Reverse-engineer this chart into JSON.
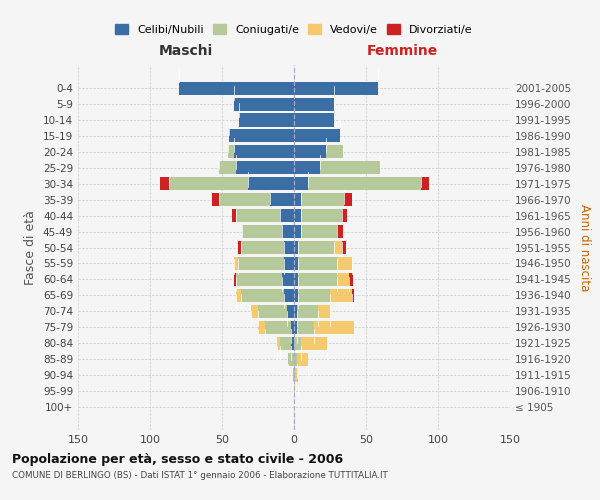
{
  "age_groups": [
    "100+",
    "95-99",
    "90-94",
    "85-89",
    "80-84",
    "75-79",
    "70-74",
    "65-69",
    "60-64",
    "55-59",
    "50-54",
    "45-49",
    "40-44",
    "35-39",
    "30-34",
    "25-29",
    "20-24",
    "15-19",
    "10-14",
    "5-9",
    "0-4"
  ],
  "birth_years": [
    "≤ 1905",
    "1906-1910",
    "1911-1915",
    "1916-1920",
    "1921-1925",
    "1926-1930",
    "1931-1935",
    "1936-1940",
    "1941-1945",
    "1946-1950",
    "1951-1955",
    "1956-1960",
    "1961-1965",
    "1966-1970",
    "1971-1975",
    "1976-1980",
    "1981-1985",
    "1986-1990",
    "1991-1995",
    "1996-2000",
    "2001-2005"
  ],
  "males_celibi": [
    0,
    0,
    0,
    0,
    2,
    2,
    5,
    7,
    8,
    7,
    7,
    8,
    10,
    17,
    32,
    40,
    42,
    45,
    38,
    42,
    80
  ],
  "males_coniugati": [
    0,
    0,
    1,
    4,
    8,
    18,
    20,
    30,
    32,
    32,
    30,
    28,
    30,
    35,
    55,
    12,
    4,
    0,
    0,
    0,
    0
  ],
  "males_vedovi": [
    0,
    0,
    0,
    0,
    2,
    5,
    5,
    3,
    0,
    3,
    0,
    0,
    0,
    0,
    0,
    0,
    0,
    0,
    0,
    0,
    0
  ],
  "males_divorziati": [
    0,
    0,
    0,
    0,
    0,
    0,
    0,
    0,
    2,
    0,
    2,
    0,
    3,
    5,
    6,
    0,
    0,
    0,
    0,
    0,
    0
  ],
  "females_nubili": [
    0,
    0,
    0,
    0,
    0,
    2,
    2,
    3,
    3,
    3,
    3,
    5,
    5,
    5,
    10,
    18,
    22,
    32,
    28,
    28,
    58
  ],
  "females_coniugate": [
    0,
    0,
    1,
    2,
    5,
    12,
    15,
    22,
    27,
    27,
    25,
    25,
    28,
    30,
    78,
    42,
    12,
    0,
    0,
    0,
    0
  ],
  "females_vedove": [
    0,
    1,
    2,
    8,
    18,
    28,
    8,
    15,
    8,
    10,
    5,
    0,
    0,
    0,
    0,
    0,
    0,
    0,
    0,
    0,
    0
  ],
  "females_divorziate": [
    0,
    0,
    0,
    0,
    0,
    0,
    0,
    2,
    3,
    0,
    3,
    4,
    4,
    5,
    6,
    0,
    0,
    0,
    0,
    0,
    0
  ],
  "color_celibi": "#3a6ea5",
  "color_coniugati": "#b5c99a",
  "color_vedovi": "#f5c96e",
  "color_divorziati": "#cc2222",
  "title": "Popolazione per età, sesso e stato civile - 2006",
  "subtitle": "COMUNE DI BERLINGO (BS) - Dati ISTAT 1° gennaio 2006 - Elaborazione TUTTITALIA.IT",
  "ylabel_left": "Fasce di età",
  "ylabel_right": "Anni di nascita",
  "xlabel_left": "Maschi",
  "xlabel_right": "Femmine",
  "xlim": 150,
  "background_color": "#f5f5f5",
  "grid_color": "#cccccc"
}
